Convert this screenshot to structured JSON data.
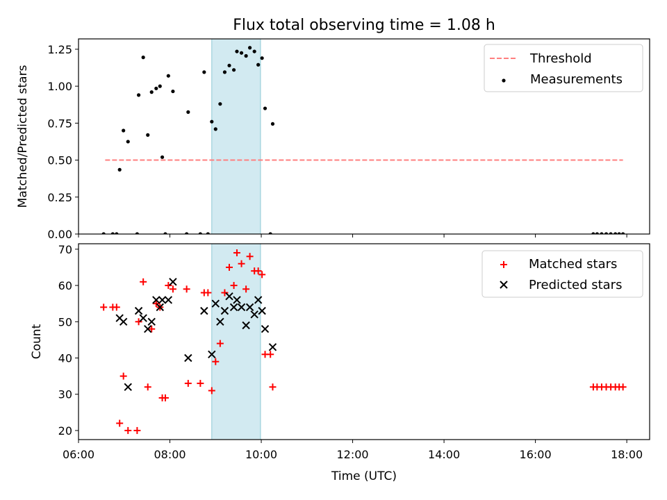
{
  "title": "Flux total observing time = 1.08 h",
  "colors": {
    "threshold": "#ff7f7f",
    "measurement": "#000000",
    "matched": "#ff0000",
    "predicted": "#000000",
    "observing_window": "#add8e6"
  },
  "chart_data": [
    {
      "type": "scatter",
      "panel": "top",
      "xlabel": "",
      "ylabel": "Matched/Predicted stars",
      "xlim": [
        "06:00",
        "18:30"
      ],
      "ylim": [
        0,
        1.32
      ],
      "yticks": [
        "0.00",
        "0.25",
        "0.50",
        "0.75",
        "1.00",
        "1.25"
      ],
      "grid": false,
      "legend_position": "top-right",
      "shaded_span": {
        "x_start": "08:55",
        "x_end": "09:59"
      },
      "threshold": {
        "name": "Threshold",
        "y": 0.5,
        "x_start": "06:35",
        "x_end": "17:55"
      },
      "series": [
        {
          "name": "Measurements",
          "points": [
            [
              "06:33",
              0.0
            ],
            [
              "06:45",
              0.0
            ],
            [
              "06:50",
              0.0
            ],
            [
              "06:54",
              0.435
            ],
            [
              "06:59",
              0.7
            ],
            [
              "07:05",
              0.625
            ],
            [
              "07:17",
              0.0
            ],
            [
              "07:19",
              0.94
            ],
            [
              "07:25",
              1.195
            ],
            [
              "07:31",
              0.67
            ],
            [
              "07:36",
              0.96
            ],
            [
              "07:42",
              0.985
            ],
            [
              "07:47",
              1.0
            ],
            [
              "07:50",
              0.52
            ],
            [
              "07:54",
              0.0
            ],
            [
              "07:58",
              1.07
            ],
            [
              "08:04",
              0.965
            ],
            [
              "08:22",
              0.0
            ],
            [
              "08:24",
              0.825
            ],
            [
              "08:40",
              0.0
            ],
            [
              "08:45",
              1.095
            ],
            [
              "08:50",
              0.0
            ],
            [
              "08:55",
              0.76
            ],
            [
              "09:00",
              0.71
            ],
            [
              "09:06",
              0.88
            ],
            [
              "09:12",
              1.095
            ],
            [
              "09:18",
              1.14
            ],
            [
              "09:24",
              1.11
            ],
            [
              "09:28",
              1.235
            ],
            [
              "09:34",
              1.225
            ],
            [
              "09:40",
              1.205
            ],
            [
              "09:45",
              1.26
            ],
            [
              "09:51",
              1.235
            ],
            [
              "09:56",
              1.145
            ],
            [
              "10:01",
              1.19
            ],
            [
              "10:05",
              0.85
            ],
            [
              "10:12",
              0.0
            ],
            [
              "10:15",
              0.745
            ],
            [
              "17:16",
              0.0
            ],
            [
              "17:21",
              0.0
            ],
            [
              "17:27",
              0.0
            ],
            [
              "17:33",
              0.0
            ],
            [
              "17:39",
              0.0
            ],
            [
              "17:45",
              0.0
            ],
            [
              "17:50",
              0.0
            ],
            [
              "17:55",
              0.0
            ]
          ]
        }
      ]
    },
    {
      "type": "scatter",
      "panel": "bottom",
      "xlabel": "Time (UTC)",
      "ylabel": "Count",
      "xlim": [
        "06:00",
        "18:30"
      ],
      "ylim": [
        17.5,
        71.5
      ],
      "xticks": [
        "06:00",
        "08:00",
        "10:00",
        "12:00",
        "14:00",
        "16:00",
        "18:00"
      ],
      "yticks": [
        "20",
        "30",
        "40",
        "50",
        "60",
        "70"
      ],
      "grid": false,
      "legend_position": "top-right",
      "shaded_span": {
        "x_start": "08:55",
        "x_end": "09:59"
      },
      "series": [
        {
          "name": "Matched stars",
          "marker": "plus",
          "points": [
            [
              "06:33",
              54
            ],
            [
              "06:45",
              54
            ],
            [
              "06:50",
              54
            ],
            [
              "06:54",
              22
            ],
            [
              "06:59",
              35
            ],
            [
              "07:05",
              20
            ],
            [
              "07:17",
              20
            ],
            [
              "07:19",
              50
            ],
            [
              "07:25",
              61
            ],
            [
              "07:31",
              32
            ],
            [
              "07:36",
              48
            ],
            [
              "07:42",
              55
            ],
            [
              "07:47",
              54
            ],
            [
              "07:50",
              29
            ],
            [
              "07:54",
              29
            ],
            [
              "07:58",
              60
            ],
            [
              "08:04",
              59
            ],
            [
              "08:22",
              59
            ],
            [
              "08:24",
              33
            ],
            [
              "08:40",
              33
            ],
            [
              "08:45",
              58
            ],
            [
              "08:50",
              58
            ],
            [
              "08:55",
              31
            ],
            [
              "09:00",
              39
            ],
            [
              "09:06",
              44
            ],
            [
              "09:12",
              58
            ],
            [
              "09:18",
              65
            ],
            [
              "09:24",
              60
            ],
            [
              "09:28",
              69
            ],
            [
              "09:34",
              66
            ],
            [
              "09:40",
              59
            ],
            [
              "09:45",
              68
            ],
            [
              "09:51",
              64
            ],
            [
              "09:56",
              64
            ],
            [
              "10:01",
              63
            ],
            [
              "10:05",
              41
            ],
            [
              "10:12",
              41
            ],
            [
              "10:15",
              32
            ],
            [
              "17:16",
              32
            ],
            [
              "17:21",
              32
            ],
            [
              "17:27",
              32
            ],
            [
              "17:33",
              32
            ],
            [
              "17:39",
              32
            ],
            [
              "17:45",
              32
            ],
            [
              "17:50",
              32
            ],
            [
              "17:55",
              32
            ]
          ]
        },
        {
          "name": "Predicted stars",
          "marker": "x",
          "points": [
            [
              "06:54",
              51
            ],
            [
              "06:59",
              50
            ],
            [
              "07:05",
              32
            ],
            [
              "07:19",
              53
            ],
            [
              "07:25",
              51
            ],
            [
              "07:31",
              48
            ],
            [
              "07:36",
              50
            ],
            [
              "07:42",
              56
            ],
            [
              "07:47",
              54
            ],
            [
              "07:50",
              56
            ],
            [
              "07:58",
              56
            ],
            [
              "08:04",
              61
            ],
            [
              "08:24",
              40
            ],
            [
              "08:45",
              53
            ],
            [
              "08:55",
              41
            ],
            [
              "09:00",
              55
            ],
            [
              "09:06",
              50
            ],
            [
              "09:12",
              53
            ],
            [
              "09:18",
              57
            ],
            [
              "09:24",
              54
            ],
            [
              "09:28",
              56
            ],
            [
              "09:34",
              54
            ],
            [
              "09:40",
              49
            ],
            [
              "09:45",
              54
            ],
            [
              "09:51",
              52
            ],
            [
              "09:56",
              56
            ],
            [
              "10:01",
              53
            ],
            [
              "10:05",
              48
            ],
            [
              "10:15",
              43
            ]
          ]
        }
      ]
    }
  ]
}
